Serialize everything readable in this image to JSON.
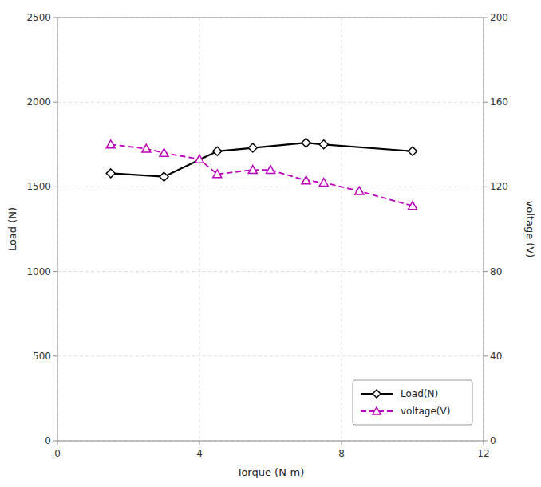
{
  "chart_data": {
    "type": "line",
    "xlabel": "Torque (N-m)",
    "ylabel": "Load (N)",
    "y2label": "voltage (V)",
    "xlim": [
      0,
      12
    ],
    "xticks": [
      0,
      4,
      8,
      12
    ],
    "ylim": [
      0,
      2500
    ],
    "yticks": [
      0,
      500,
      1000,
      1500,
      2000,
      2500
    ],
    "y2lim": [
      0,
      200
    ],
    "y2ticks": [
      0,
      40,
      80,
      120,
      160,
      200
    ],
    "grid": true,
    "legend": "lower right",
    "series": [
      {
        "name": "Load(N)",
        "color": "#000000",
        "marker": "diamond",
        "line_style": "solid",
        "x": [
          1.5,
          3.0,
          4.5,
          5.5,
          7.0,
          7.5,
          10.0
        ],
        "values": [
          1580,
          1560,
          1710,
          1730,
          1760,
          1750,
          1710
        ]
      },
      {
        "name": "voltage(V)",
        "color": "#bb00bb",
        "marker": "triangle",
        "line_style": "dashed",
        "axis": "y2",
        "x": [
          1.5,
          2.5,
          3.0,
          4.0,
          4.5,
          5.5,
          6.0,
          7.0,
          7.5,
          8.5,
          10.0
        ],
        "values": [
          140,
          138,
          136,
          133,
          126,
          128,
          128,
          123,
          122,
          118,
          111
        ]
      }
    ]
  }
}
